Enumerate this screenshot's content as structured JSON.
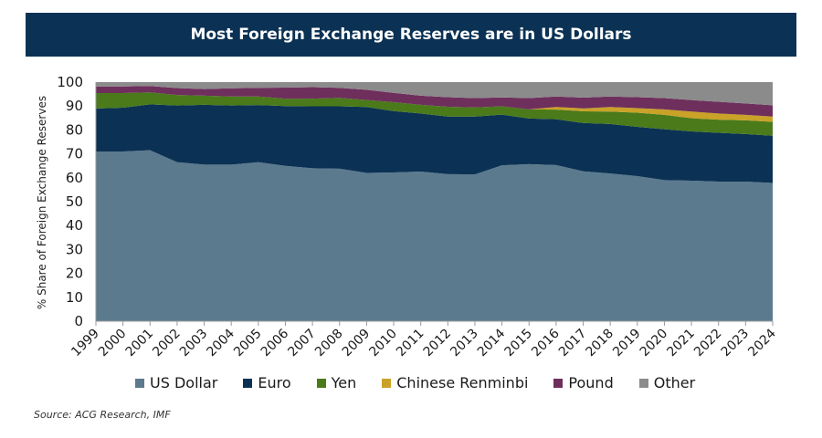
{
  "title": "Most Foreign Exchange Reserves are in US Dollars",
  "source": "Source: ACG Research, IMF",
  "chart_data": {
    "type": "area",
    "stacked": true,
    "ylabel": "% Share of Foreign Exchange Reserves",
    "xlabel": "",
    "ylim": [
      0,
      100
    ],
    "yticks": [
      0,
      10,
      20,
      30,
      40,
      50,
      60,
      70,
      80,
      90,
      100
    ],
    "legend_position": "bottom",
    "x": [
      "1999",
      "2000",
      "2001",
      "2002",
      "2003",
      "2004",
      "2005",
      "2006",
      "2007",
      "2008",
      "2009",
      "2010",
      "2011",
      "2012",
      "2013",
      "2014",
      "2015",
      "2016",
      "2017",
      "2018",
      "2019",
      "2020",
      "2021",
      "2022",
      "2023",
      "2024"
    ],
    "series": [
      {
        "name": "US Dollar",
        "color": "#5b7a8e",
        "values": [
          71,
          71,
          71.5,
          66.5,
          65.5,
          65.5,
          66.5,
          65,
          64,
          63.8,
          62,
          62.2,
          62.6,
          61.5,
          61.4,
          65.2,
          65.7,
          65.3,
          62.7,
          61.8,
          60.7,
          59,
          58.8,
          58.4,
          58.4,
          57.8
        ]
      },
      {
        "name": "Euro",
        "color": "#0b3254",
        "values": [
          18,
          18.3,
          19.2,
          23.7,
          25,
          24.7,
          23.9,
          25,
          25.9,
          26.1,
          27.6,
          25.7,
          24.3,
          24.1,
          24.2,
          21.2,
          19.1,
          19.2,
          20.2,
          20.7,
          20.6,
          21.3,
          20.6,
          20.4,
          19.9,
          19.8
        ]
      },
      {
        "name": "Yen",
        "color": "#4a7a1a",
        "values": [
          6.4,
          6.1,
          5,
          4.4,
          3.8,
          3.8,
          3.6,
          3.1,
          3.2,
          3.5,
          2.9,
          3.7,
          3.6,
          4.1,
          3.8,
          3.5,
          3.8,
          4,
          4.9,
          5.2,
          5.9,
          6,
          5.5,
          5.5,
          5.7,
          5.8
        ]
      },
      {
        "name": "Chinese Renminbi",
        "color": "#c9a227",
        "values": [
          0,
          0,
          0,
          0,
          0,
          0,
          0,
          0,
          0,
          0,
          0,
          0,
          0,
          0,
          0,
          0,
          0,
          1.1,
          1.2,
          1.9,
          1.9,
          2.3,
          2.8,
          2.6,
          2.3,
          2.2
        ]
      },
      {
        "name": "Pound",
        "color": "#6e2f5c",
        "values": [
          2.8,
          2.8,
          2.7,
          2.9,
          2.8,
          3.4,
          3.6,
          4.6,
          4.8,
          4.2,
          4.3,
          3.9,
          3.8,
          4,
          3.9,
          3.7,
          4.7,
          4.4,
          4.5,
          4.4,
          4.6,
          4.7,
          4.8,
          4.9,
          4.8,
          4.7
        ]
      },
      {
        "name": "Other",
        "color": "#8b8b8b",
        "values": [
          1.8,
          1.8,
          1.6,
          2.5,
          2.9,
          2.6,
          2.4,
          2.3,
          2.1,
          2.4,
          3.2,
          4.5,
          5.7,
          6.3,
          6.7,
          6.4,
          6.7,
          6,
          6.5,
          6,
          6.3,
          6.7,
          7.5,
          8.2,
          8.9,
          9.7
        ]
      }
    ]
  }
}
